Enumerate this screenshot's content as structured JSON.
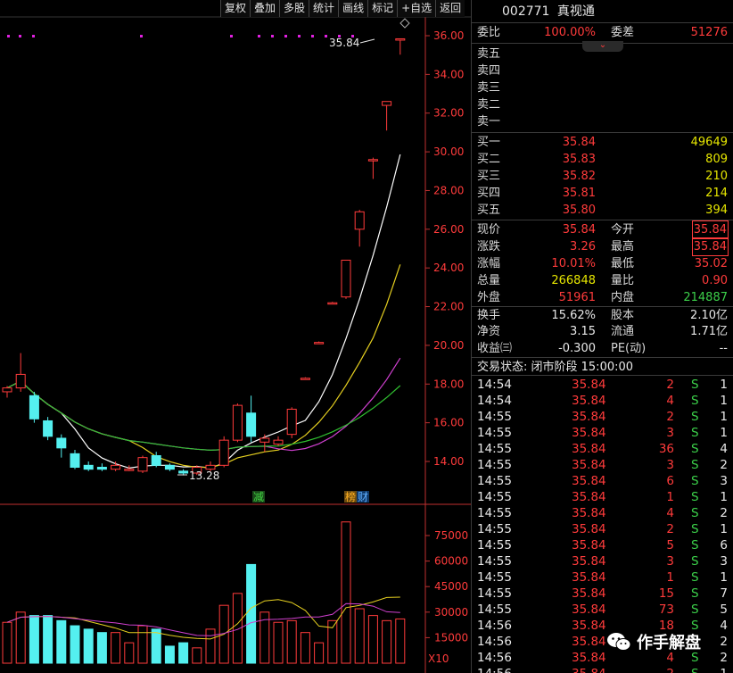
{
  "toolbar": [
    "复权",
    "叠加",
    "多股",
    "统计",
    "画线",
    "标记",
    "+自选",
    "返回"
  ],
  "chart": {
    "price_ticks": [
      "36.00",
      "34.00",
      "32.00",
      "30.00",
      "28.00",
      "26.00",
      "24.00",
      "22.00",
      "20.00",
      "18.00",
      "16.00",
      "14.00"
    ],
    "high_label": "35.84",
    "low_label": "13.28",
    "marker_jian": "减",
    "marker_bang": "榜",
    "marker_cai": "财",
    "volume_ticks": [
      "75000",
      "60000",
      "45000",
      "30000",
      "15000"
    ],
    "volume_unit": "X10"
  },
  "header": {
    "code": "002771",
    "name": "真视通"
  },
  "commission": {
    "ratio_label": "委比",
    "ratio": "100.00%",
    "diff_label": "委差",
    "diff": "51276"
  },
  "asks": [
    "卖五",
    "卖四",
    "卖三",
    "卖二",
    "卖一"
  ],
  "bids": [
    {
      "label": "买一",
      "price": "35.84",
      "vol": "49649"
    },
    {
      "label": "买二",
      "price": "35.83",
      "vol": "809"
    },
    {
      "label": "买三",
      "price": "35.82",
      "vol": "210"
    },
    {
      "label": "买四",
      "price": "35.81",
      "vol": "214"
    },
    {
      "label": "买五",
      "price": "35.80",
      "vol": "394"
    }
  ],
  "quote": {
    "now_l": "现价",
    "now": "35.84",
    "open_l": "今开",
    "open": "35.84",
    "chg_l": "涨跌",
    "chg": "3.26",
    "high_l": "最高",
    "high": "35.84",
    "pct_l": "涨幅",
    "pct": "10.01%",
    "low_l": "最低",
    "low": "35.02",
    "vol_l": "总量",
    "vol": "266848",
    "vr_l": "量比",
    "vr": "0.90",
    "outer_l": "外盘",
    "outer": "51961",
    "inner_l": "内盘",
    "inner": "214887",
    "turn_l": "换手",
    "turn": "15.62%",
    "cap_l": "股本",
    "cap": "2.10亿",
    "nav_l": "净资",
    "nav": "3.15",
    "float_l": "流通",
    "float": "1.71亿",
    "eps_l": "收益㈢",
    "eps": "-0.300",
    "pe_l": "PE(动)",
    "pe": "--"
  },
  "trade_status": "交易状态: 闭市阶段 15:00:00",
  "ticks": [
    {
      "t": "14:54",
      "p": "35.84",
      "v": "2",
      "s": "S",
      "n": "1"
    },
    {
      "t": "14:54",
      "p": "35.84",
      "v": "4",
      "s": "S",
      "n": "1"
    },
    {
      "t": "14:55",
      "p": "35.84",
      "v": "2",
      "s": "S",
      "n": "1"
    },
    {
      "t": "14:55",
      "p": "35.84",
      "v": "3",
      "s": "S",
      "n": "1"
    },
    {
      "t": "14:55",
      "p": "35.84",
      "v": "36",
      "s": "S",
      "n": "4"
    },
    {
      "t": "14:55",
      "p": "35.84",
      "v": "3",
      "s": "S",
      "n": "2"
    },
    {
      "t": "14:55",
      "p": "35.84",
      "v": "6",
      "s": "S",
      "n": "3"
    },
    {
      "t": "14:55",
      "p": "35.84",
      "v": "1",
      "s": "S",
      "n": "1"
    },
    {
      "t": "14:55",
      "p": "35.84",
      "v": "4",
      "s": "S",
      "n": "2"
    },
    {
      "t": "14:55",
      "p": "35.84",
      "v": "2",
      "s": "S",
      "n": "1"
    },
    {
      "t": "14:55",
      "p": "35.84",
      "v": "5",
      "s": "S",
      "n": "6"
    },
    {
      "t": "14:55",
      "p": "35.84",
      "v": "3",
      "s": "S",
      "n": "3"
    },
    {
      "t": "14:55",
      "p": "35.84",
      "v": "1",
      "s": "S",
      "n": "1"
    },
    {
      "t": "14:55",
      "p": "35.84",
      "v": "15",
      "s": "S",
      "n": "7"
    },
    {
      "t": "14:55",
      "p": "35.84",
      "v": "73",
      "s": "S",
      "n": "5"
    },
    {
      "t": "14:56",
      "p": "35.84",
      "v": "18",
      "s": "S",
      "n": "4"
    },
    {
      "t": "14:56",
      "p": "35.84",
      "v": "",
      "s": "",
      "n": "2"
    },
    {
      "t": "14:56",
      "p": "35.84",
      "v": "4",
      "s": "S",
      "n": "2"
    },
    {
      "t": "14:56",
      "p": "35.84",
      "v": "2",
      "s": "S",
      "n": "1"
    }
  ],
  "watermark": "作手解盘",
  "candles": [
    {
      "o": 17.6,
      "c": 17.8,
      "h": 17.9,
      "l": 17.3
    },
    {
      "o": 17.8,
      "c": 18.5,
      "h": 19.6,
      "l": 17.6
    },
    {
      "o": 17.4,
      "c": 16.2,
      "h": 17.6,
      "l": 16.0
    },
    {
      "o": 16.1,
      "c": 15.3,
      "h": 16.3,
      "l": 15.1
    },
    {
      "o": 15.2,
      "c": 14.7,
      "h": 15.4,
      "l": 14.2
    },
    {
      "o": 14.4,
      "c": 13.7,
      "h": 14.6,
      "l": 13.6
    },
    {
      "o": 13.8,
      "c": 13.6,
      "h": 14.0,
      "l": 13.5
    },
    {
      "o": 13.7,
      "c": 13.6,
      "h": 13.9,
      "l": 13.5
    },
    {
      "o": 13.6,
      "c": 13.8,
      "h": 14.0,
      "l": 13.5
    },
    {
      "o": 13.6,
      "c": 13.6,
      "h": 13.8,
      "l": 13.5
    },
    {
      "o": 13.5,
      "c": 14.2,
      "h": 14.3,
      "l": 13.4
    },
    {
      "o": 14.3,
      "c": 13.8,
      "h": 14.5,
      "l": 13.7
    },
    {
      "o": 13.8,
      "c": 13.6,
      "h": 13.9,
      "l": 13.5
    },
    {
      "o": 13.5,
      "c": 13.4,
      "h": 13.6,
      "l": 13.28
    },
    {
      "o": 13.4,
      "c": 13.7,
      "h": 13.8,
      "l": 13.3
    },
    {
      "o": 13.6,
      "c": 13.8,
      "h": 14.0,
      "l": 13.5
    },
    {
      "o": 13.8,
      "c": 15.1,
      "h": 15.3,
      "l": 13.7
    },
    {
      "o": 15.1,
      "c": 16.9,
      "h": 17.0,
      "l": 15.0
    },
    {
      "o": 16.5,
      "c": 15.3,
      "h": 17.4,
      "l": 15.0
    },
    {
      "o": 15.0,
      "c": 15.2,
      "h": 15.4,
      "l": 14.5
    },
    {
      "o": 14.9,
      "c": 15.1,
      "h": 15.3,
      "l": 14.8
    },
    {
      "o": 15.4,
      "c": 16.7,
      "h": 16.8,
      "l": 15.2
    },
    {
      "o": 18.3,
      "c": 18.3,
      "h": 18.35,
      "l": 18.25
    },
    {
      "o": 20.15,
      "c": 20.15,
      "h": 20.2,
      "l": 20.1
    },
    {
      "o": 22.2,
      "c": 22.2,
      "h": 22.25,
      "l": 22.15
    },
    {
      "o": 22.5,
      "c": 24.4,
      "h": 24.4,
      "l": 22.4
    },
    {
      "o": 26.0,
      "c": 26.9,
      "h": 27.0,
      "l": 25.1
    },
    {
      "o": 29.6,
      "c": 29.6,
      "h": 29.7,
      "l": 28.6
    },
    {
      "o": 32.4,
      "c": 32.6,
      "h": 32.6,
      "l": 31.1
    },
    {
      "o": 35.84,
      "c": 35.84,
      "h": 35.84,
      "l": 35.02
    }
  ],
  "volumes": [
    24000,
    30000,
    28000,
    28000,
    25000,
    22000,
    20000,
    18000,
    18000,
    12000,
    22000,
    20000,
    10000,
    12000,
    9000,
    20000,
    34000,
    41000,
    58000,
    30000,
    24000,
    25000,
    18000,
    12000,
    25000,
    83000,
    32000,
    28000,
    25000,
    26000
  ]
}
